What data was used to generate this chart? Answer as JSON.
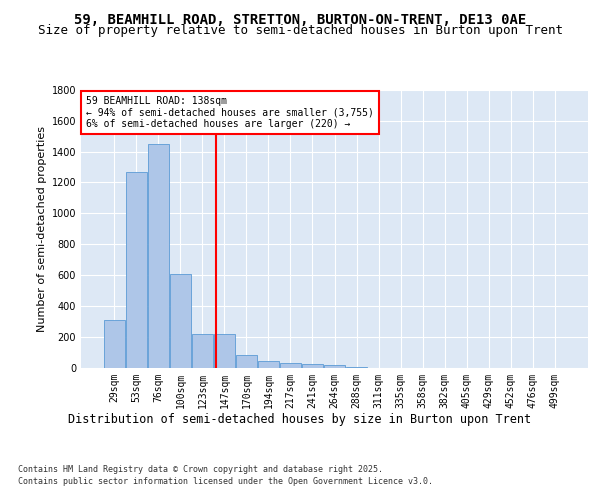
{
  "title": "59, BEAMHILL ROAD, STRETTON, BURTON-ON-TRENT, DE13 0AE",
  "subtitle": "Size of property relative to semi-detached houses in Burton upon Trent",
  "xlabel": "Distribution of semi-detached houses by size in Burton upon Trent",
  "ylabel": "Number of semi-detached properties",
  "categories": [
    "29sqm",
    "53sqm",
    "76sqm",
    "100sqm",
    "123sqm",
    "147sqm",
    "170sqm",
    "194sqm",
    "217sqm",
    "241sqm",
    "264sqm",
    "288sqm",
    "311sqm",
    "335sqm",
    "358sqm",
    "382sqm",
    "405sqm",
    "429sqm",
    "452sqm",
    "476sqm",
    "499sqm"
  ],
  "values": [
    305,
    1270,
    1450,
    605,
    220,
    220,
    80,
    40,
    30,
    20,
    15,
    5,
    0,
    0,
    0,
    0,
    0,
    0,
    0,
    0,
    0
  ],
  "bar_color": "#aec6e8",
  "bar_edge_color": "#5b9bd5",
  "vline_color": "red",
  "vline_pos": 4.625,
  "annotation_title": "59 BEAMHILL ROAD: 138sqm",
  "annotation_line1": "← 94% of semi-detached houses are smaller (3,755)",
  "annotation_line2": "6% of semi-detached houses are larger (220) →",
  "ylim": [
    0,
    1800
  ],
  "yticks": [
    0,
    200,
    400,
    600,
    800,
    1000,
    1200,
    1400,
    1600,
    1800
  ],
  "background_color": "#dde8f5",
  "grid_color": "white",
  "footer_line1": "Contains HM Land Registry data © Crown copyright and database right 2025.",
  "footer_line2": "Contains public sector information licensed under the Open Government Licence v3.0.",
  "title_fontsize": 10,
  "subtitle_fontsize": 9,
  "xlabel_fontsize": 8.5,
  "ylabel_fontsize": 8,
  "tick_fontsize": 7,
  "annot_fontsize": 7,
  "footer_fontsize": 6
}
